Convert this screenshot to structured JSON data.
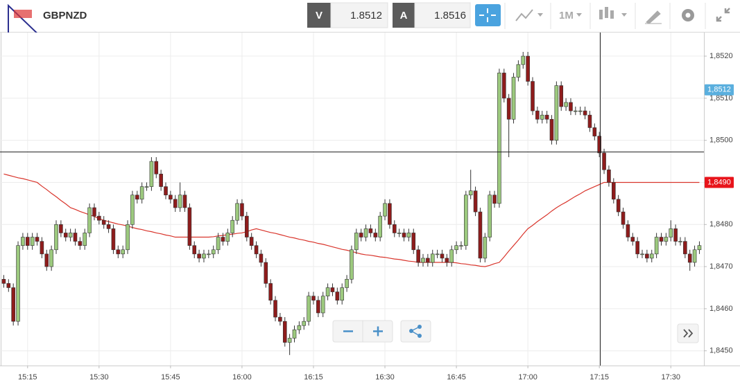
{
  "toolbar": {
    "symbol": "GBPNZD",
    "bid_label": "V",
    "bid": "1.8512",
    "ask_label": "A",
    "ask": "1.8516",
    "timeframe": "1M"
  },
  "chart_data": {
    "type": "candlestick",
    "categories": [
      null,
      null,
      null,
      null,
      null,
      "15:15",
      null,
      null,
      null,
      null,
      null,
      null,
      null,
      null,
      null,
      null,
      null,
      null,
      null,
      null,
      "15:30",
      null,
      null,
      null,
      null,
      null,
      null,
      null,
      null,
      null,
      null,
      null,
      null,
      null,
      null,
      "15:45",
      null,
      null,
      null,
      null,
      null,
      null,
      null,
      null,
      null,
      null,
      null,
      null,
      null,
      null,
      "16:00",
      null,
      null,
      null,
      null,
      null,
      null,
      null,
      null,
      null,
      null,
      null,
      null,
      null,
      null,
      "16:15",
      null,
      null,
      null,
      null,
      null,
      null,
      null,
      null,
      null,
      null,
      null,
      null,
      null,
      null,
      "16:30",
      null,
      null,
      null,
      null,
      null,
      null,
      null,
      null,
      null,
      null,
      null,
      null,
      null,
      null,
      "16:45",
      null,
      null,
      null,
      null,
      null,
      null,
      null,
      null,
      null,
      null,
      null,
      null,
      null,
      null,
      "17:00",
      null,
      null,
      null,
      null,
      null,
      null,
      null,
      null,
      null,
      null,
      null,
      null,
      null,
      null,
      "17:15",
      null,
      null,
      null,
      null,
      null,
      null,
      null,
      null,
      null,
      null,
      null,
      null,
      null,
      null,
      "17:30",
      null,
      null,
      null,
      null,
      null,
      null
    ],
    "open": [
      1.8467,
      1.8466,
      1.8465,
      1.8457,
      1.8475,
      1.8477,
      1.8475,
      1.8477,
      1.8476,
      1.8473,
      1.847,
      1.8474,
      1.848,
      1.8478,
      1.8477,
      1.8478,
      1.8476,
      1.8475,
      1.8478,
      1.8484,
      1.8482,
      1.8481,
      1.848,
      1.8479,
      1.8474,
      1.8473,
      1.8474,
      1.848,
      1.8487,
      1.8486,
      1.8489,
      1.8489,
      1.8495,
      1.8492,
      1.8489,
      1.8487,
      1.8486,
      1.8484,
      1.8487,
      1.8484,
      1.8475,
      1.8473,
      1.8472,
      1.8473,
      1.8473,
      1.8474,
      1.8477,
      1.8476,
      1.8478,
      1.8481,
      1.8485,
      1.8482,
      1.8477,
      1.8475,
      1.8473,
      1.8471,
      1.8466,
      1.8462,
      1.8458,
      1.8457,
      1.8452,
      1.8453,
      1.8455,
      1.8456,
      1.8457,
      1.8463,
      1.8462,
      1.8459,
      1.8463,
      1.8465,
      1.8464,
      1.8462,
      1.8465,
      1.8467,
      1.8474,
      1.8478,
      1.8477,
      1.8479,
      1.8478,
      1.8477,
      1.8482,
      1.8485,
      1.848,
      1.8478,
      1.8478,
      1.8477,
      1.8478,
      1.8474,
      1.8471,
      1.8472,
      1.8471,
      1.8473,
      1.8473,
      1.8472,
      1.8471,
      1.8474,
      1.8475,
      1.8475,
      1.8487,
      1.8488,
      1.8483,
      1.8472,
      1.8477,
      1.8487,
      1.8485,
      1.8516,
      1.851,
      1.8505,
      1.8515,
      1.8518,
      1.852,
      1.8514,
      1.8507,
      1.8505,
      1.8506,
      1.8505,
      1.85,
      1.8513,
      1.8508,
      1.8509,
      1.8507,
      1.8507,
      1.8507,
      1.8506,
      1.8503,
      1.8501,
      1.8497,
      1.8493,
      1.849,
      1.8486,
      1.8483,
      1.848,
      1.8477,
      1.8476,
      1.8473,
      1.8473,
      1.8472,
      1.8473,
      1.8477,
      1.8476,
      1.8477,
      1.8479,
      1.8476,
      1.8476,
      1.8473,
      1.8471,
      1.8474
    ],
    "high": [
      1.8468,
      1.8467,
      1.8466,
      1.8476,
      1.8478,
      1.8478,
      1.8478,
      1.8478,
      1.8477,
      1.8474,
      1.8475,
      1.8481,
      1.8481,
      1.8479,
      1.8479,
      1.8479,
      1.8477,
      1.8479,
      1.8485,
      1.8485,
      1.8483,
      1.8482,
      1.8481,
      1.848,
      1.8475,
      1.8475,
      1.8481,
      1.8488,
      1.8488,
      1.849,
      1.849,
      1.8496,
      1.8496,
      1.8493,
      1.849,
      1.8488,
      1.8487,
      1.849,
      1.8488,
      1.8485,
      1.8476,
      1.8474,
      1.8474,
      1.8474,
      1.8475,
      1.8478,
      1.8478,
      1.8479,
      1.8482,
      1.8486,
      1.8486,
      1.8483,
      1.8478,
      1.8476,
      1.8474,
      1.8472,
      1.8467,
      1.8463,
      1.8459,
      1.8458,
      1.8454,
      1.8456,
      1.8457,
      1.8458,
      1.8464,
      1.8464,
      1.8463,
      1.8464,
      1.8466,
      1.8466,
      1.8465,
      1.8466,
      1.8468,
      1.8475,
      1.8479,
      1.8479,
      1.848,
      1.848,
      1.8479,
      1.8483,
      1.8486,
      1.8486,
      1.8481,
      1.8479,
      1.8479,
      1.8479,
      1.8479,
      1.8475,
      1.8473,
      1.8473,
      1.8474,
      1.8474,
      1.8474,
      1.8473,
      1.8475,
      1.8476,
      1.8476,
      1.8488,
      1.8493,
      1.8489,
      1.8484,
      1.8478,
      1.8488,
      1.8488,
      1.8517,
      1.8517,
      1.8511,
      1.8516,
      1.8519,
      1.8521,
      1.8521,
      1.8515,
      1.8508,
      1.8507,
      1.8507,
      1.8506,
      1.8514,
      1.8514,
      1.851,
      1.851,
      1.8508,
      1.8508,
      1.8508,
      1.8507,
      1.8504,
      1.8502,
      1.8498,
      1.8494,
      1.8491,
      1.8487,
      1.8484,
      1.8481,
      1.8478,
      1.8477,
      1.8474,
      1.8474,
      1.8474,
      1.8478,
      1.8478,
      1.8478,
      1.8481,
      1.848,
      1.8477,
      1.8477,
      1.8474,
      1.8475,
      1.8476
    ],
    "low": [
      1.8465,
      1.8464,
      1.8456,
      1.8456,
      1.8474,
      1.8474,
      1.8474,
      1.8475,
      1.8472,
      1.8469,
      1.8469,
      1.8473,
      1.8477,
      1.8476,
      1.8476,
      1.8475,
      1.8474,
      1.8474,
      1.8477,
      1.8481,
      1.848,
      1.8479,
      1.8478,
      1.8473,
      1.8472,
      1.8472,
      1.8473,
      1.8479,
      1.8485,
      1.8485,
      1.8488,
      1.8488,
      1.8491,
      1.8488,
      1.8486,
      1.8485,
      1.8483,
      1.8483,
      1.8483,
      1.8474,
      1.8472,
      1.8471,
      1.8471,
      1.8472,
      1.8472,
      1.8473,
      1.8475,
      1.8475,
      1.8477,
      1.848,
      1.8481,
      1.8476,
      1.8474,
      1.8472,
      1.847,
      1.8465,
      1.8461,
      1.8457,
      1.8456,
      1.8451,
      1.8449,
      1.8452,
      1.8454,
      1.8455,
      1.8456,
      1.8461,
      1.8458,
      1.8458,
      1.8462,
      1.8463,
      1.8461,
      1.8461,
      1.8464,
      1.8466,
      1.8473,
      1.8476,
      1.8476,
      1.8477,
      1.8476,
      1.8476,
      1.8481,
      1.8479,
      1.8477,
      1.8477,
      1.8476,
      1.8476,
      1.8473,
      1.847,
      1.847,
      1.847,
      1.847,
      1.8472,
      1.8471,
      1.847,
      1.847,
      1.8473,
      1.8474,
      1.8474,
      1.8486,
      1.8482,
      1.8471,
      1.8471,
      1.8476,
      1.8484,
      1.8484,
      1.8509,
      1.8496,
      1.8504,
      1.8514,
      1.8517,
      1.8513,
      1.8506,
      1.8504,
      1.8504,
      1.8504,
      1.8499,
      1.8499,
      1.8507,
      1.8507,
      1.8506,
      1.8506,
      1.8506,
      1.8505,
      1.8502,
      1.85,
      1.8496,
      1.8492,
      1.8489,
      1.8485,
      1.8482,
      1.8479,
      1.8476,
      1.8475,
      1.8472,
      1.8472,
      1.8471,
      1.8471,
      1.8472,
      1.8475,
      1.8475,
      1.8476,
      1.8475,
      1.8475,
      1.8472,
      1.8469,
      1.847,
      1.8473
    ],
    "close": [
      1.8466,
      1.8465,
      1.8457,
      1.8475,
      1.8477,
      1.8475,
      1.8477,
      1.8476,
      1.8473,
      1.847,
      1.8474,
      1.848,
      1.8478,
      1.8477,
      1.8478,
      1.8476,
      1.8475,
      1.8478,
      1.8484,
      1.8482,
      1.8481,
      1.848,
      1.8479,
      1.8474,
      1.8473,
      1.8474,
      1.848,
      1.8487,
      1.8486,
      1.8489,
      1.8489,
      1.8495,
      1.8492,
      1.8489,
      1.8487,
      1.8486,
      1.8484,
      1.8487,
      1.8484,
      1.8475,
      1.8473,
      1.8472,
      1.8473,
      1.8473,
      1.8474,
      1.8477,
      1.8476,
      1.8478,
      1.8481,
      1.8485,
      1.8482,
      1.8477,
      1.8475,
      1.8473,
      1.8471,
      1.8466,
      1.8462,
      1.8458,
      1.8457,
      1.8452,
      1.8453,
      1.8455,
      1.8456,
      1.8457,
      1.8463,
      1.8462,
      1.8459,
      1.8463,
      1.8465,
      1.8464,
      1.8462,
      1.8465,
      1.8467,
      1.8474,
      1.8478,
      1.8477,
      1.8479,
      1.8478,
      1.8477,
      1.8482,
      1.8485,
      1.848,
      1.8478,
      1.8478,
      1.8477,
      1.8478,
      1.8474,
      1.8471,
      1.8472,
      1.8471,
      1.8473,
      1.8473,
      1.8472,
      1.8471,
      1.8474,
      1.8475,
      1.8475,
      1.8487,
      1.8488,
      1.8483,
      1.8472,
      1.8477,
      1.8487,
      1.8485,
      1.8516,
      1.851,
      1.8505,
      1.8515,
      1.8518,
      1.852,
      1.8514,
      1.8507,
      1.8505,
      1.8506,
      1.8505,
      1.85,
      1.8513,
      1.8508,
      1.8509,
      1.8507,
      1.8507,
      1.8507,
      1.8506,
      1.8503,
      1.8501,
      1.8497,
      1.8493,
      1.849,
      1.8486,
      1.8483,
      1.848,
      1.8477,
      1.8476,
      1.8473,
      1.8473,
      1.8472,
      1.8473,
      1.8477,
      1.8476,
      1.8477,
      1.8479,
      1.8476,
      1.8476,
      1.8473,
      1.8471,
      1.8474,
      1.8475
    ],
    "up_color": "#9cc97e",
    "down_color": "#8e1c1c",
    "moving_average": {
      "color": "#d9342b",
      "values": [
        1.8492,
        1.84917,
        1.84914,
        1.84911,
        1.84909,
        1.84906,
        1.84903,
        1.849,
        1.84891,
        1.84883,
        1.84874,
        1.84866,
        1.84857,
        1.84849,
        1.8484,
        1.84836,
        1.84831,
        1.84827,
        1.84823,
        1.84819,
        1.84814,
        1.8481,
        1.84807,
        1.84804,
        1.84801,
        1.84799,
        1.84796,
        1.84793,
        1.8479,
        1.84788,
        1.84785,
        1.84783,
        1.8478,
        1.84778,
        1.84775,
        1.84773,
        1.8477,
        1.8477,
        1.8477,
        1.8477,
        1.8477,
        1.8477,
        1.8477,
        1.8477,
        1.84771,
        1.84773,
        1.84774,
        1.84776,
        1.84777,
        1.84779,
        1.8478,
        1.84783,
        1.84787,
        1.8479,
        1.84787,
        1.84784,
        1.84781,
        1.84779,
        1.84776,
        1.84773,
        1.8477,
        1.84768,
        1.84765,
        1.84763,
        1.8476,
        1.84758,
        1.84755,
        1.84753,
        1.8475,
        1.84747,
        1.84744,
        1.84741,
        1.84739,
        1.84736,
        1.84733,
        1.8473,
        1.84728,
        1.84727,
        1.84725,
        1.84723,
        1.84722,
        1.8472,
        1.84718,
        1.84717,
        1.84715,
        1.84713,
        1.84712,
        1.8471,
        1.8471,
        1.8471,
        1.8471,
        1.8471,
        1.8471,
        1.8471,
        1.8471,
        1.84709,
        1.84707,
        1.84706,
        1.84704,
        1.84703,
        1.84701,
        1.847,
        1.84703,
        1.84707,
        1.8471,
        1.84723,
        1.84737,
        1.8475,
        1.84763,
        1.84777,
        1.8479,
        1.84798,
        1.84807,
        1.84815,
        1.84823,
        1.84832,
        1.8484,
        1.84847,
        1.84853,
        1.8486,
        1.84867,
        1.84873,
        1.8488,
        1.84885,
        1.8489,
        1.84895,
        1.849,
        1.849,
        1.849,
        1.849,
        1.849,
        1.849,
        1.849,
        1.849,
        1.849,
        1.849,
        1.849,
        1.849,
        1.849,
        1.849,
        1.849,
        1.849,
        1.849,
        1.849,
        1.849,
        1.849,
        1.849
      ]
    },
    "ylim": [
      1.84465,
      1.85256
    ],
    "yticks": [
      {
        "value": 1.845,
        "label": "1,8450"
      },
      {
        "value": 1.846,
        "label": "1,8460"
      },
      {
        "value": 1.847,
        "label": "1,8470"
      },
      {
        "value": 1.848,
        "label": "1,8480"
      },
      {
        "value": 1.849,
        "label": "1,8490"
      },
      {
        "value": 1.85,
        "label": "1,8500"
      },
      {
        "value": 1.851,
        "label": "1,8510"
      },
      {
        "value": 1.852,
        "label": "1,8520"
      }
    ],
    "price_tags": [
      {
        "value": 1.8512,
        "label": "1,8512",
        "color": "#5aafde"
      },
      {
        "value": 1.849,
        "label": "1,8490",
        "color": "#e8141b"
      }
    ],
    "grid": true
  }
}
